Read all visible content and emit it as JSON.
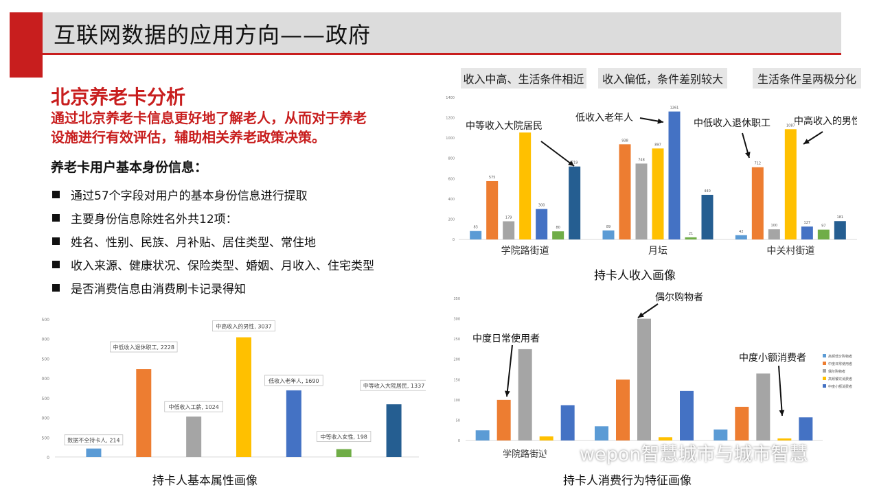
{
  "page": {
    "title": "互联网数据的应用方向——政府"
  },
  "section": {
    "title": "北京养老卡分析",
    "description_line1": "通过北京养老卡信息更好地了解老人，从而对于养老",
    "description_line2": "设施进行有效评估，辅助相关养老政策决策。",
    "subtitle": "养老卡用户基本身份信息：",
    "bullets": [
      "通过57个字段对用户的基本身份信息进行提取",
      "主要身份信息除姓名外共12项：",
      "姓名、性别、民族、月补贴、居住类型、常住地",
      "收入来源、健康状况、保险类型、婚姻、月收入、住宅类型",
      "是否消费信息由消费刷卡记录得知"
    ]
  },
  "tags": [
    "收入中高、生活条件相近",
    "收入偏低，条件差别较大",
    "生活条件呈两极分化"
  ],
  "watermark": "wepon智慧城市与城市智慧",
  "colors": {
    "accent": "#c81e1e",
    "light_blue": "#5b9bd5",
    "orange": "#ed7d31",
    "gray": "#a5a5a5",
    "yellow": "#ffc000",
    "blue": "#4472c4",
    "green": "#70ad47",
    "dark_blue": "#255e91"
  },
  "chart_data": [
    {
      "id": "attr",
      "type": "bar",
      "caption": "持卡人基本属性画像",
      "ylim": [
        0,
        3500
      ],
      "yticks": [
        "0",
        "500",
        "1000",
        "1500",
        "2000",
        "2500",
        "3000",
        "3500"
      ],
      "bars": [
        {
          "label": "数据不全持卡人",
          "value": 214,
          "text": "数据不全持卡人, 214",
          "color": "#5b9bd5"
        },
        {
          "label": "中低收入退休职工",
          "value": 2228,
          "text": "中低收入退休职工, 2228",
          "color": "#ed7d31"
        },
        {
          "label": "中低收入工薪",
          "value": 1024,
          "text": "中低收入工薪, 1024",
          "color": "#a5a5a5"
        },
        {
          "label": "中高收入的男性",
          "value": 3037,
          "text": "中高收入的男性, 3037",
          "color": "#ffc000"
        },
        {
          "label": "低收入老年人",
          "value": 1690,
          "text": "低收入老年人, 1690",
          "color": "#4472c4"
        },
        {
          "label": "中等收入女性",
          "value": 198,
          "text": "中等收入女性, 198",
          "color": "#70ad47"
        },
        {
          "label": "中等收入大院居民",
          "value": 1337,
          "text": "中等收入大院居民, 1337",
          "color": "#255e91"
        }
      ]
    },
    {
      "id": "income",
      "type": "bar",
      "caption": "持卡人收入画像",
      "categories": [
        "学院路街道",
        "月坛",
        "中关村街道"
      ],
      "ylim": [
        0,
        1400
      ],
      "yticks": [
        "0",
        "200",
        "400",
        "600",
        "800",
        "1000",
        "1200",
        "1400"
      ],
      "series_colors": [
        "#5b9bd5",
        "#ed7d31",
        "#a5a5a5",
        "#ffc000",
        "#4472c4",
        "#70ad47",
        "#255e91"
      ],
      "values": [
        [
          83,
          575,
          179,
          1054,
          300,
          80,
          719
        ],
        [
          89,
          938,
          748,
          897,
          1261,
          21,
          440
        ],
        [
          42,
          712,
          100,
          1087,
          127,
          97,
          181
        ]
      ],
      "value_labels": [
        [
          "83",
          "575",
          "179",
          "",
          "300",
          "80",
          "719"
        ],
        [
          "89",
          "938",
          "748",
          "897",
          "1261",
          "21",
          "440"
        ],
        [
          "42",
          "712",
          "100",
          "1087",
          "127",
          "97",
          "181"
        ]
      ],
      "annotations": [
        "中等收入大院居民",
        "低收入老年人",
        "中低收入退休职工",
        "中高收入的男性"
      ]
    },
    {
      "id": "consume",
      "type": "bar",
      "caption": "持卡人消费行为特征画像",
      "categories": [
        "学院路街道",
        "",
        ""
      ],
      "ylim": [
        0,
        350
      ],
      "yticks": [
        "0",
        "50",
        "100",
        "150",
        "200",
        "250",
        "300",
        "350"
      ],
      "series_colors": [
        "#5b9bd5",
        "#ed7d31",
        "#a5a5a5",
        "#ffc000",
        "#4472c4"
      ],
      "values": [
        [
          25,
          100,
          225,
          10,
          87
        ],
        [
          35,
          150,
          300,
          8,
          122
        ],
        [
          27,
          83,
          165,
          5,
          57
        ]
      ],
      "legend": [
        "高频低价购物者",
        "中度日常使用者",
        "偶尔购物者",
        "高频餐饮消费者",
        "中度小额消费者"
      ],
      "annotations": [
        "偶尔购物者",
        "中度日常使用者",
        "中度小额消费者"
      ]
    }
  ]
}
